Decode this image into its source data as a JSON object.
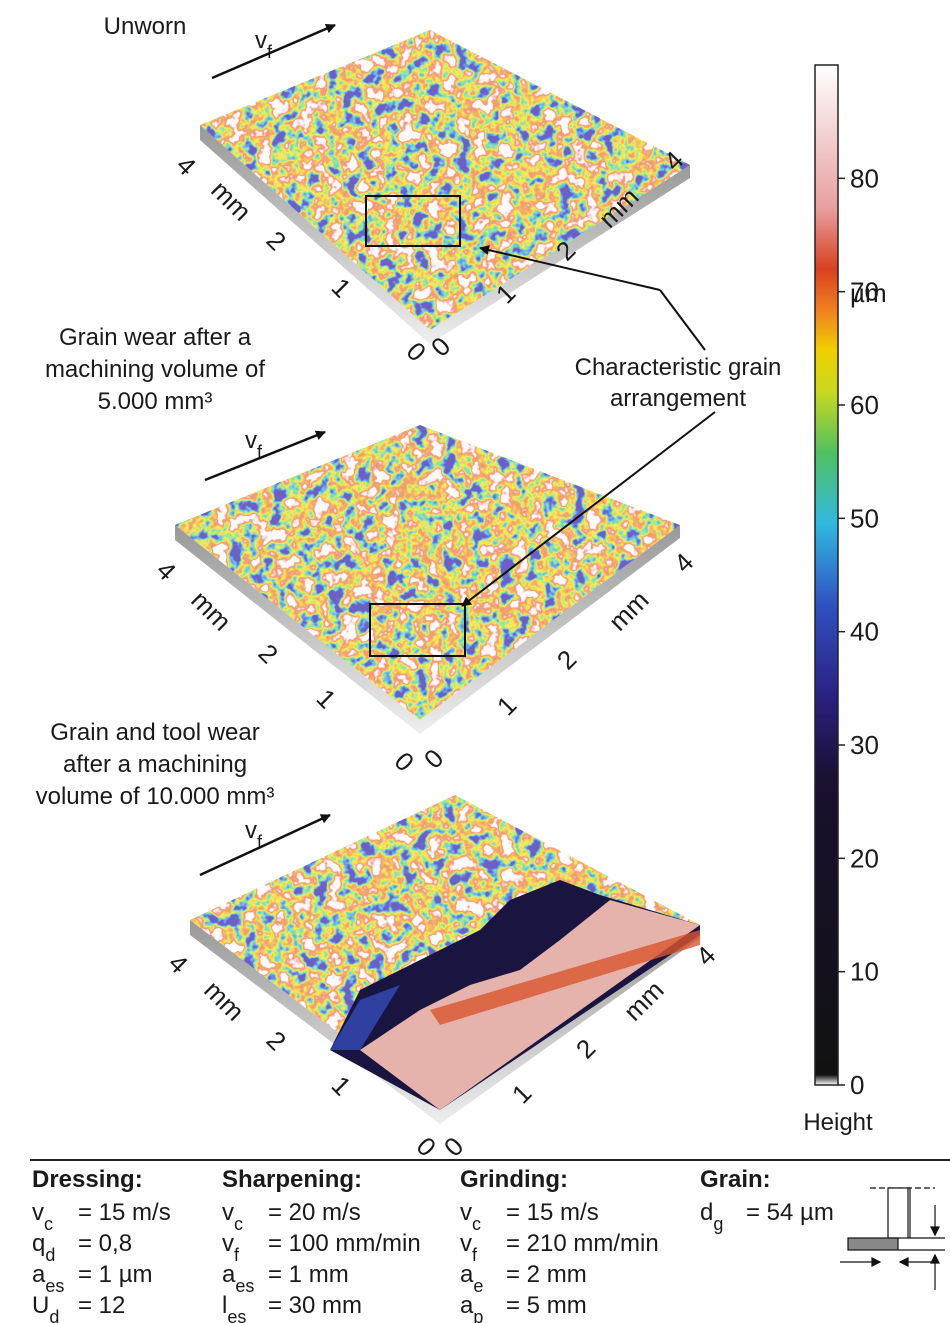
{
  "panels": [
    {
      "title_lines": [
        "Unworn"
      ],
      "velocity": {
        "symbol": "v",
        "sub": "f"
      },
      "left_axis": [
        "4",
        "mm",
        "2",
        "1",
        "0"
      ],
      "right_axis": [
        "0",
        "1",
        "2",
        "mm",
        "4"
      ]
    },
    {
      "title_lines": [
        "Grain wear after a",
        "machining volume of",
        "5.000 mm³"
      ],
      "velocity": {
        "symbol": "v",
        "sub": "f"
      },
      "left_axis": [
        "4",
        "mm",
        "2",
        "1",
        "0"
      ],
      "right_axis": [
        "0",
        "1",
        "2",
        "mm",
        "4"
      ]
    },
    {
      "title_lines": [
        "Grain and tool wear",
        "after a machining",
        "volume of 10.000 mm³"
      ],
      "velocity": {
        "symbol": "v",
        "sub": "f"
      },
      "left_axis": [
        "4",
        "mm",
        "2",
        "1",
        "0"
      ],
      "right_axis": [
        "0",
        "1",
        "2",
        "mm",
        "4"
      ]
    }
  ],
  "annotation": [
    "Characteristic grain",
    "arrangement"
  ],
  "colorbar": {
    "range": [
      0,
      90
    ],
    "ticks": [
      0,
      10,
      20,
      30,
      40,
      50,
      60,
      70,
      80
    ],
    "unit": "µm",
    "label": "Height"
  },
  "parameters": [
    {
      "heading": "Dressing:",
      "rows": [
        {
          "symbol": "v",
          "sub": "c",
          "text": "= 15 m/s"
        },
        {
          "symbol": "q",
          "sub": "d",
          "text": "= 0,8"
        },
        {
          "symbol": "a",
          "sub": "es",
          "text": "= 1 µm"
        },
        {
          "symbol": "U",
          "sub": "d",
          "text": "= 12"
        }
      ]
    },
    {
      "heading": "Sharpening:",
      "rows": [
        {
          "symbol": "v",
          "sub": "c",
          "text": "= 20 m/s"
        },
        {
          "symbol": "v",
          "sub": "f",
          "text": "= 100 mm/min"
        },
        {
          "symbol": "a",
          "sub": "es",
          "text": "= 1 mm"
        },
        {
          "symbol": "l",
          "sub": "es",
          "text": "= 30 mm"
        }
      ]
    },
    {
      "heading": "Grinding:",
      "rows": [
        {
          "symbol": "v",
          "sub": "c",
          "text": "= 15 m/s"
        },
        {
          "symbol": "v",
          "sub": "f",
          "text": "= 210 mm/min"
        },
        {
          "symbol": "a",
          "sub": "e",
          "text": "= 2 mm"
        },
        {
          "symbol": "a",
          "sub": "p",
          "text": "= 5 mm"
        }
      ]
    },
    {
      "heading": "Grain:",
      "rows": [
        {
          "symbol": "d",
          "sub": "g",
          "text": "= 54 µm"
        }
      ]
    }
  ]
}
